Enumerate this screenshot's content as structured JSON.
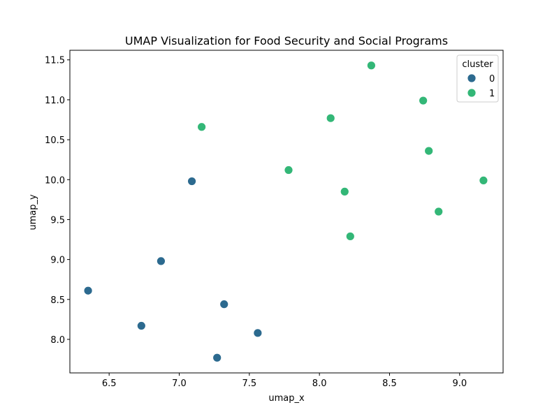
{
  "chart_data": {
    "type": "scatter",
    "title": "UMAP Visualization for Food Security and Social Programs",
    "xlabel": "umap_x",
    "ylabel": "umap_y",
    "xlim": [
      6.22,
      9.31
    ],
    "ylim": [
      7.58,
      11.62
    ],
    "xticks": [
      6.5,
      7.0,
      7.5,
      8.0,
      8.5,
      9.0
    ],
    "yticks": [
      8.0,
      8.5,
      9.0,
      9.5,
      10.0,
      10.5,
      11.0,
      11.5
    ],
    "grid": false,
    "legend": {
      "title": "cluster",
      "position": "top-right"
    },
    "series": [
      {
        "name": "0",
        "color": "#2c6a8f",
        "points": [
          {
            "x": 7.09,
            "y": 9.98
          },
          {
            "x": 6.87,
            "y": 8.98
          },
          {
            "x": 6.35,
            "y": 8.61
          },
          {
            "x": 6.73,
            "y": 8.17
          },
          {
            "x": 7.32,
            "y": 8.44
          },
          {
            "x": 7.56,
            "y": 8.08
          },
          {
            "x": 7.27,
            "y": 7.77
          }
        ]
      },
      {
        "name": "1",
        "color": "#33b777",
        "points": [
          {
            "x": 8.37,
            "y": 11.43
          },
          {
            "x": 8.74,
            "y": 10.99
          },
          {
            "x": 7.16,
            "y": 10.66
          },
          {
            "x": 8.08,
            "y": 10.77
          },
          {
            "x": 8.78,
            "y": 10.36
          },
          {
            "x": 7.78,
            "y": 10.12
          },
          {
            "x": 8.18,
            "y": 9.85
          },
          {
            "x": 9.17,
            "y": 9.99
          },
          {
            "x": 8.85,
            "y": 9.6
          },
          {
            "x": 8.22,
            "y": 9.29
          }
        ]
      }
    ]
  }
}
